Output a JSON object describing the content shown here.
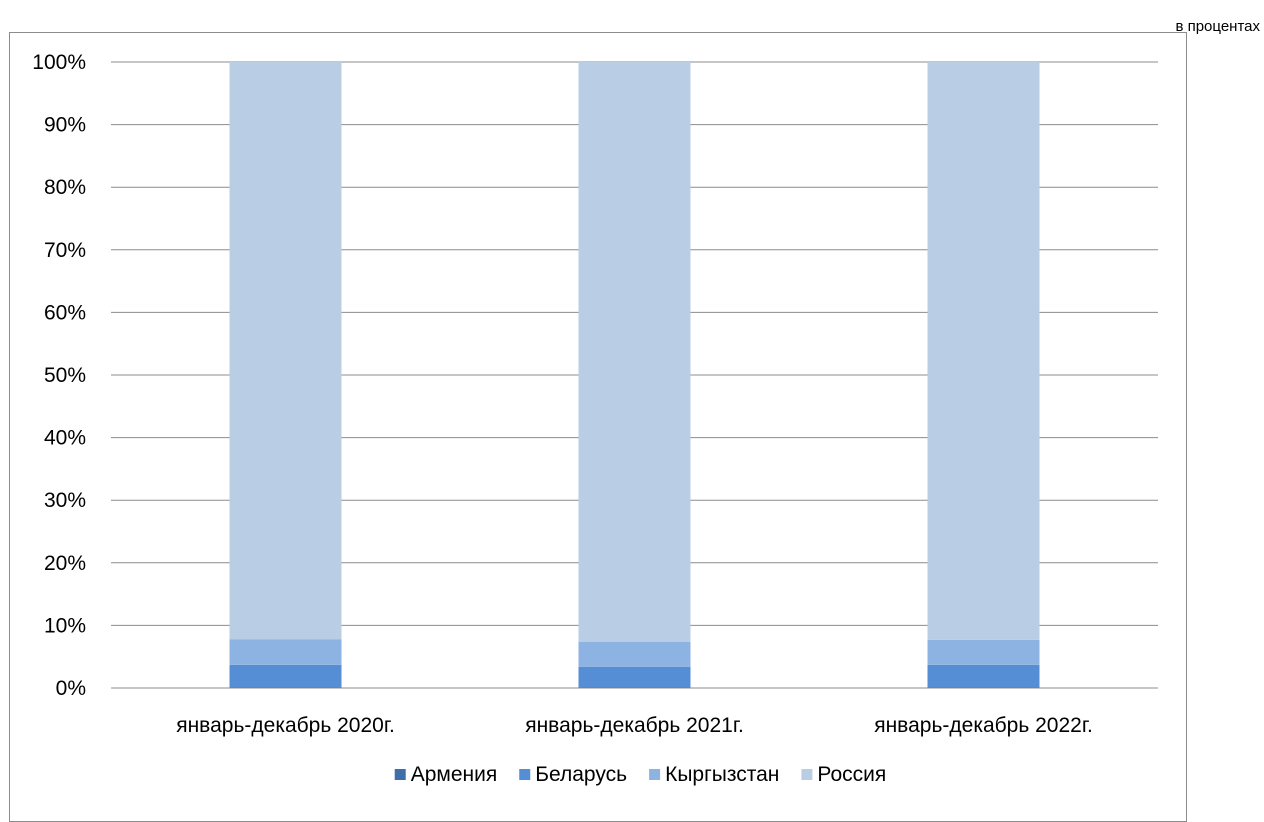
{
  "units_note": "в процентах",
  "chart_data": {
    "type": "bar",
    "stacked": true,
    "percent_stacked": true,
    "categories": [
      "январь-декабрь 2020г.",
      "январь-декабрь 2021г.",
      "январь-декабрь 2022г."
    ],
    "series": [
      {
        "name": "Армения",
        "values": [
          0.1,
          0.1,
          0.1
        ],
        "color": "#3f6fa8"
      },
      {
        "name": "Беларусь",
        "values": [
          3.6,
          3.3,
          3.6
        ],
        "color": "#558ed5"
      },
      {
        "name": "Кыргызстан",
        "values": [
          4.1,
          4.0,
          4.0
        ],
        "color": "#8db3e2"
      },
      {
        "name": "Россия",
        "values": [
          92.2,
          92.6,
          92.3
        ],
        "color": "#b9cde5"
      }
    ],
    "y_ticks": [
      "0%",
      "10%",
      "20%",
      "30%",
      "40%",
      "50%",
      "60%",
      "70%",
      "80%",
      "90%",
      "100%"
    ],
    "ylim": [
      0,
      100
    ],
    "grid": true,
    "legend_position": "bottom"
  }
}
